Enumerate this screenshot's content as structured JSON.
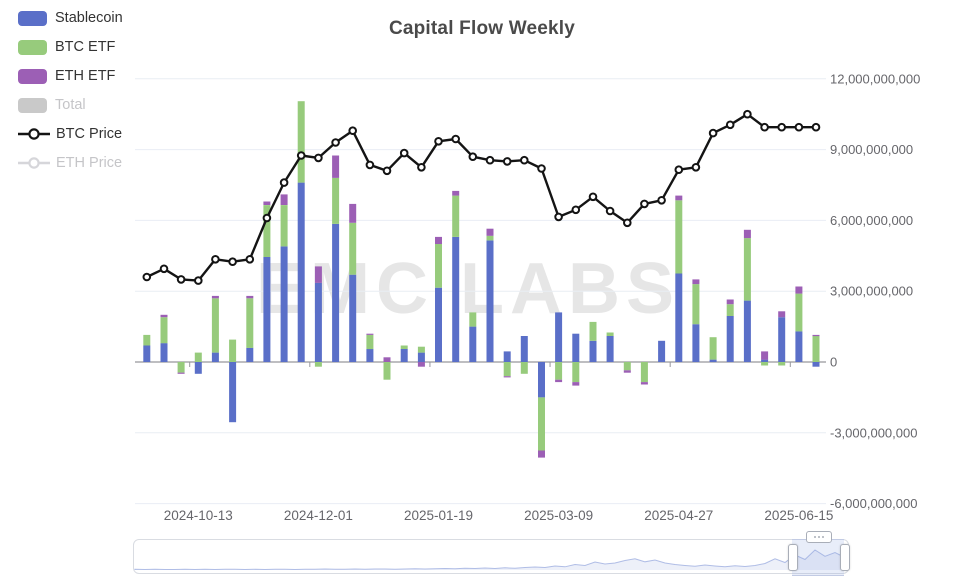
{
  "title": "Capital Flow Weekly",
  "watermark": "EMC LABS",
  "legend": {
    "items": [
      {
        "id": "stablecoin",
        "label": "Stablecoin",
        "icon": "bar-swatch",
        "color": "#5A6FC8",
        "disabled": false
      },
      {
        "id": "btc-etf",
        "label": "BTC ETF",
        "icon": "bar-swatch",
        "color": "#97CB7C",
        "disabled": false
      },
      {
        "id": "eth-etf",
        "label": "ETH ETF",
        "icon": "bar-swatch",
        "color": "#9C5FB5",
        "disabled": false
      },
      {
        "id": "total",
        "label": "Total",
        "icon": "bar-swatch",
        "color": "#C9C9C9",
        "disabled": true
      },
      {
        "id": "btc-price",
        "label": "BTC Price",
        "icon": "line-marker",
        "color": "#141414",
        "disabled": false
      },
      {
        "id": "eth-price",
        "label": "ETH Price",
        "icon": "line-marker",
        "color": "#D6D6DA",
        "disabled": true
      }
    ]
  },
  "y_axis": {
    "side": "right",
    "labels": [
      "12,000,000,000",
      "9,000,000,000",
      "6,000,000,000",
      "3,000,000,000",
      "0",
      "-3,000,000,000",
      "-6,000,000,000"
    ],
    "values_billions": [
      12,
      9,
      6,
      3,
      0,
      -3,
      -6
    ]
  },
  "x_axis": {
    "labels": [
      "2024-10-13",
      "2024-12-01",
      "2025-01-19",
      "2025-03-09",
      "2025-04-27",
      "2025-06-15"
    ],
    "label_indices": [
      3,
      10,
      17,
      24,
      31,
      38
    ]
  },
  "colors": {
    "stablecoin": "#5A6FC8",
    "btc_etf": "#97CB7C",
    "eth_etf": "#9C5FB5",
    "total_disabled": "#C9C9C9",
    "btc_price_line": "#141414",
    "grid": "#e9edf4",
    "zero_axis": "#97979c",
    "axis_text": "#66666b",
    "watermark": "#e6e6e6",
    "nav_spark": "#a3b3e2"
  },
  "chart_data": {
    "type": "mixed",
    "subtype": "stacked-bar + line",
    "value_unit": "USD",
    "value_scale": 1000000000,
    "ylim_billions": [
      -6,
      12
    ],
    "grid": true,
    "legend_position": "top-left",
    "x": [
      "2024-09-22",
      "2024-09-29",
      "2024-10-06",
      "2024-10-13",
      "2024-10-20",
      "2024-10-27",
      "2024-11-03",
      "2024-11-10",
      "2024-11-17",
      "2024-11-24",
      "2024-12-01",
      "2024-12-08",
      "2024-12-15",
      "2024-12-22",
      "2024-12-29",
      "2025-01-05",
      "2025-01-12",
      "2025-01-19",
      "2025-01-26",
      "2025-02-02",
      "2025-02-09",
      "2025-02-16",
      "2025-02-23",
      "2025-03-02",
      "2025-03-09",
      "2025-03-16",
      "2025-03-23",
      "2025-03-30",
      "2025-04-06",
      "2025-04-13",
      "2025-04-20",
      "2025-04-27",
      "2025-05-04",
      "2025-05-11",
      "2025-05-18",
      "2025-05-25",
      "2025-06-01",
      "2025-06-08",
      "2025-06-15",
      "2025-06-22"
    ],
    "series": [
      {
        "name": "Stablecoin",
        "type": "bar",
        "stacked": true,
        "color": "#5A6FC8",
        "disabled": false,
        "values_billions": [
          0.7,
          0.8,
          0,
          -0.5,
          0.4,
          -2.55,
          0.6,
          4.45,
          4.9,
          7.6,
          3.35,
          5.85,
          3.7,
          0.55,
          0,
          0.55,
          0.4,
          3.15,
          5.3,
          1.5,
          5.15,
          0.45,
          1.1,
          -1.5,
          2.1,
          1.2,
          0.9,
          1.1,
          0,
          0,
          0.9,
          3.75,
          1.6,
          0.1,
          1.95,
          2.6,
          0.1,
          1.9,
          1.3,
          -0.2
        ]
      },
      {
        "name": "BTC ETF",
        "type": "bar",
        "stacked": true,
        "color": "#97CB7C",
        "disabled": false,
        "values_billions": [
          0.45,
          1.1,
          -0.45,
          0.4,
          2.3,
          0.95,
          2.1,
          2.2,
          1.75,
          3.45,
          -0.2,
          1.95,
          2.2,
          0.6,
          -0.75,
          0.15,
          0.25,
          1.85,
          1.75,
          0.6,
          0.2,
          -0.6,
          -0.5,
          -2.25,
          -0.75,
          -0.85,
          0.8,
          0.15,
          -0.35,
          -0.85,
          0,
          3.1,
          1.7,
          0.95,
          0.5,
          2.65,
          -0.15,
          -0.15,
          1.6,
          1.1
        ]
      },
      {
        "name": "ETH ETF",
        "type": "bar",
        "stacked": true,
        "color": "#9C5FB5",
        "disabled": false,
        "values_billions": [
          0,
          0.1,
          -0.05,
          0,
          0.1,
          0,
          0.1,
          0.15,
          0.45,
          0,
          0.7,
          0.95,
          0.8,
          0.05,
          0.2,
          0,
          -0.2,
          0.3,
          0.2,
          0,
          0.3,
          -0.05,
          0,
          -0.3,
          -0.1,
          -0.15,
          0,
          0,
          -0.1,
          -0.1,
          0,
          0.2,
          0.2,
          0,
          0.2,
          0.35,
          0.35,
          0.25,
          0.3,
          0.05
        ]
      },
      {
        "name": "Total",
        "type": "bar",
        "stacked": false,
        "color": "#C9C9C9",
        "disabled": true,
        "values_billions": null
      },
      {
        "name": "BTC Price",
        "type": "line",
        "color": "#141414",
        "disabled": false,
        "plotted_on": "flow_axis",
        "values_billions": [
          3.6,
          3.95,
          3.5,
          3.45,
          4.35,
          4.25,
          4.35,
          6.1,
          7.6,
          8.75,
          8.65,
          9.3,
          9.8,
          8.35,
          8.1,
          8.85,
          8.25,
          9.35,
          9.45,
          8.7,
          8.55,
          8.5,
          8.55,
          8.2,
          6.15,
          6.45,
          7.0,
          6.4,
          5.9,
          6.7,
          6.85,
          8.15,
          8.25,
          9.7,
          10.05,
          10.5,
          9.95,
          9.95,
          9.95,
          9.95
        ]
      },
      {
        "name": "ETH Price",
        "type": "line",
        "color": "#D6D6DA",
        "disabled": true,
        "values_billions": null
      }
    ]
  },
  "navigator": {
    "window_start_pct": 92.4,
    "window_end_pct": 99.7,
    "spark": [
      0.03,
      0.02,
      0.03,
      0.02,
      0.02,
      0.03,
      0.02,
      0.03,
      0.02,
      0.03,
      0.03,
      0.02,
      0.03,
      0.02,
      0.03,
      0.03,
      0.02,
      0.03,
      0.03,
      0.04,
      0.03,
      0.03,
      0.04,
      0.03,
      0.04,
      0.04,
      0.03,
      0.04,
      0.05,
      0.04,
      0.05,
      0.06,
      0.05,
      0.07,
      0.06,
      0.08,
      0.06,
      0.09,
      0.07,
      0.1,
      0.12,
      0.1,
      0.16,
      0.13,
      0.22,
      0.18,
      0.32,
      0.24,
      0.28,
      0.38,
      0.45,
      0.33,
      0.4,
      0.28,
      0.22,
      0.18,
      0.15,
      0.2,
      0.16,
      0.13,
      0.17,
      0.14,
      0.18,
      0.26,
      0.45,
      0.3,
      0.6,
      0.42,
      0.8,
      0.55,
      0.7,
      0.5
    ]
  }
}
